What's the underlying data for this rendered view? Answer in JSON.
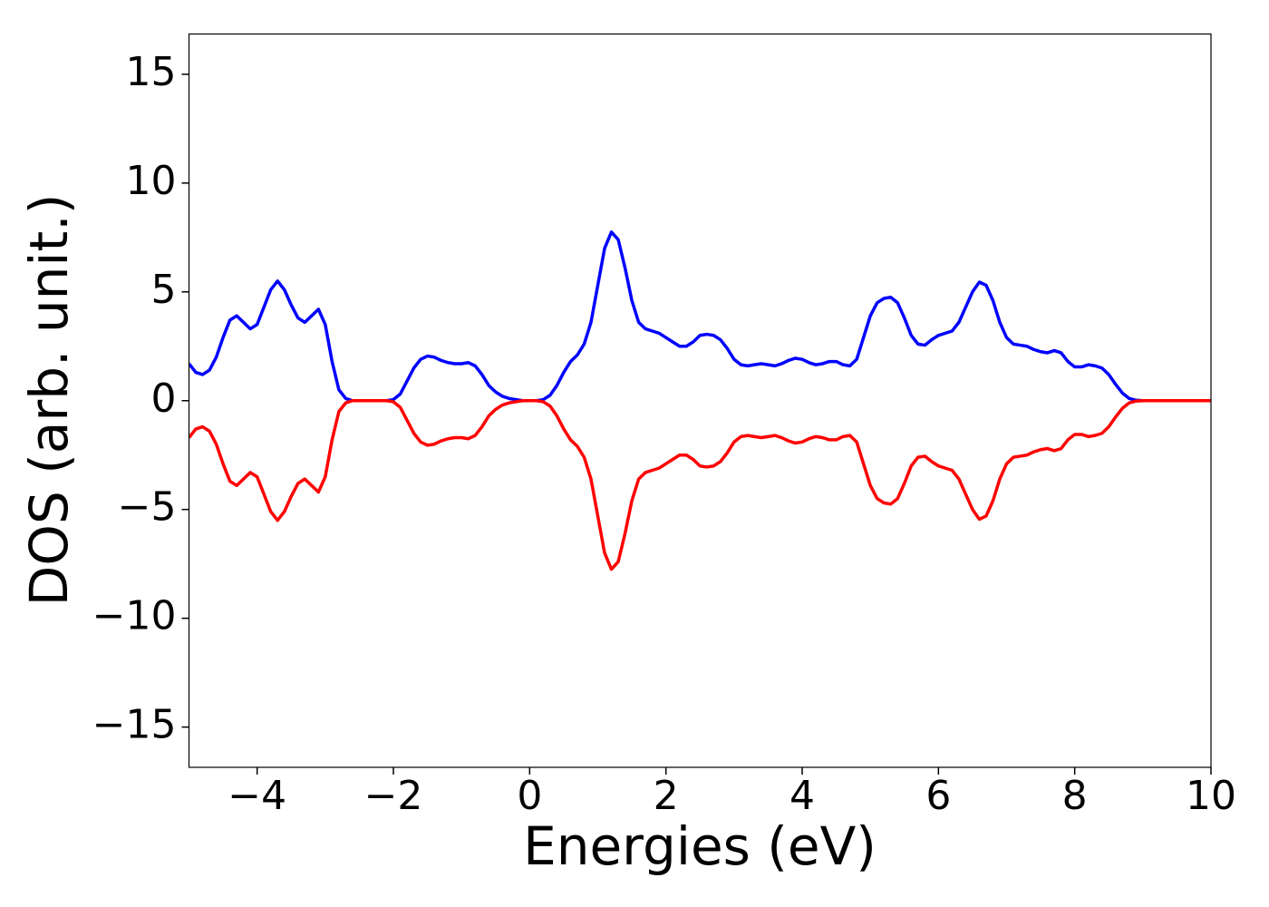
{
  "chart_data": {
    "type": "line",
    "xlabel": "Energies (eV)",
    "ylabel": "DOS (arb. unit.)",
    "xlim": [
      -5,
      10
    ],
    "ylim": [
      -16.85,
      16.85
    ],
    "xticks": [
      {
        "value": -4,
        "label": "−4"
      },
      {
        "value": -2,
        "label": "−2"
      },
      0,
      2,
      4,
      6,
      8,
      10
    ],
    "yticks": [
      {
        "value": -15,
        "label": "−15"
      },
      {
        "value": -10,
        "label": "−10"
      },
      {
        "value": -5,
        "label": "−5"
      },
      0,
      5,
      10,
      15
    ],
    "grid": false,
    "x": [
      -5.0,
      -4.9,
      -4.8,
      -4.7,
      -4.6,
      -4.5,
      -4.4,
      -4.3,
      -4.2,
      -4.1,
      -4.0,
      -3.9,
      -3.8,
      -3.7,
      -3.6,
      -3.5,
      -3.4,
      -3.3,
      -3.2,
      -3.1,
      -3.0,
      -2.9,
      -2.8,
      -2.7,
      -2.6,
      -2.5,
      -2.4,
      -2.3,
      -2.2,
      -2.1,
      -2.0,
      -1.9,
      -1.8,
      -1.7,
      -1.6,
      -1.5,
      -1.4,
      -1.3,
      -1.2,
      -1.1,
      -1.0,
      -0.9,
      -0.8,
      -0.7,
      -0.6,
      -0.5,
      -0.4,
      -0.3,
      -0.2,
      -0.1,
      0.0,
      0.1,
      0.2,
      0.3,
      0.4,
      0.5,
      0.6,
      0.7,
      0.8,
      0.9,
      1.0,
      1.1,
      1.2,
      1.3,
      1.4,
      1.5,
      1.6,
      1.7,
      1.8,
      1.9,
      2.0,
      2.1,
      2.2,
      2.3,
      2.4,
      2.5,
      2.6,
      2.7,
      2.8,
      2.9,
      3.0,
      3.1,
      3.2,
      3.3,
      3.4,
      3.5,
      3.6,
      3.7,
      3.8,
      3.9,
      4.0,
      4.1,
      4.2,
      4.3,
      4.4,
      4.5,
      4.6,
      4.7,
      4.8,
      4.9,
      5.0,
      5.1,
      5.2,
      5.3,
      5.4,
      5.5,
      5.6,
      5.7,
      5.8,
      5.9,
      6.0,
      6.1,
      6.2,
      6.3,
      6.4,
      6.5,
      6.6,
      6.7,
      6.8,
      6.9,
      7.0,
      7.1,
      7.2,
      7.3,
      7.4,
      7.5,
      7.6,
      7.7,
      7.8,
      7.9,
      8.0,
      8.1,
      8.2,
      8.3,
      8.4,
      8.5,
      8.6,
      8.7,
      8.8,
      8.9,
      9.0,
      9.1,
      9.2,
      9.3,
      9.4,
      9.5,
      9.6,
      9.7,
      9.8,
      9.9,
      10.0
    ],
    "series": [
      {
        "color": "#0000ff",
        "values": [
          1.7,
          1.3,
          1.2,
          1.4,
          2.0,
          2.9,
          3.7,
          3.9,
          3.6,
          3.3,
          3.5,
          4.3,
          5.1,
          5.5,
          5.1,
          4.4,
          3.8,
          3.6,
          3.9,
          4.2,
          3.5,
          1.8,
          0.5,
          0.1,
          0,
          0,
          0,
          0,
          0,
          0,
          0.05,
          0.3,
          0.9,
          1.5,
          1.9,
          2.05,
          2.0,
          1.85,
          1.75,
          1.7,
          1.7,
          1.75,
          1.6,
          1.2,
          0.7,
          0.4,
          0.2,
          0.1,
          0.05,
          0,
          0,
          0,
          0.05,
          0.25,
          0.7,
          1.3,
          1.8,
          2.1,
          2.6,
          3.6,
          5.3,
          7.0,
          7.75,
          7.4,
          6.1,
          4.6,
          3.6,
          3.3,
          3.2,
          3.1,
          2.9,
          2.7,
          2.5,
          2.5,
          2.7,
          3.0,
          3.05,
          3.0,
          2.8,
          2.4,
          1.9,
          1.65,
          1.6,
          1.65,
          1.7,
          1.65,
          1.6,
          1.7,
          1.85,
          1.95,
          1.9,
          1.75,
          1.65,
          1.7,
          1.8,
          1.8,
          1.65,
          1.6,
          1.9,
          2.9,
          3.9,
          4.5,
          4.7,
          4.75,
          4.5,
          3.8,
          3.0,
          2.6,
          2.55,
          2.8,
          3.0,
          3.1,
          3.2,
          3.6,
          4.3,
          5.0,
          5.45,
          5.3,
          4.6,
          3.6,
          2.9,
          2.6,
          2.55,
          2.5,
          2.35,
          2.25,
          2.2,
          2.3,
          2.2,
          1.8,
          1.55,
          1.55,
          1.65,
          1.6,
          1.5,
          1.2,
          0.75,
          0.35,
          0.1,
          0.02,
          0,
          0,
          0,
          0,
          0,
          0,
          0,
          0,
          0,
          0,
          0
        ]
      },
      {
        "color": "#ff0000",
        "values": [
          -1.7,
          -1.3,
          -1.2,
          -1.4,
          -2.0,
          -2.9,
          -3.7,
          -3.9,
          -3.6,
          -3.3,
          -3.5,
          -4.3,
          -5.1,
          -5.5,
          -5.1,
          -4.4,
          -3.8,
          -3.6,
          -3.9,
          -4.2,
          -3.5,
          -1.8,
          -0.5,
          -0.1,
          0,
          0,
          0,
          0,
          0,
          0,
          -0.05,
          -0.3,
          -0.9,
          -1.5,
          -1.9,
          -2.05,
          -2.0,
          -1.85,
          -1.75,
          -1.7,
          -1.7,
          -1.75,
          -1.6,
          -1.2,
          -0.7,
          -0.4,
          -0.2,
          -0.1,
          -0.05,
          0,
          0,
          0,
          -0.05,
          -0.25,
          -0.7,
          -1.3,
          -1.8,
          -2.1,
          -2.6,
          -3.6,
          -5.3,
          -7.0,
          -7.75,
          -7.4,
          -6.1,
          -4.6,
          -3.6,
          -3.3,
          -3.2,
          -3.1,
          -2.9,
          -2.7,
          -2.5,
          -2.5,
          -2.7,
          -3.0,
          -3.05,
          -3.0,
          -2.8,
          -2.4,
          -1.9,
          -1.65,
          -1.6,
          -1.65,
          -1.7,
          -1.65,
          -1.6,
          -1.7,
          -1.85,
          -1.95,
          -1.9,
          -1.75,
          -1.65,
          -1.7,
          -1.8,
          -1.8,
          -1.65,
          -1.6,
          -1.9,
          -2.9,
          -3.9,
          -4.5,
          -4.7,
          -4.75,
          -4.5,
          -3.8,
          -3.0,
          -2.6,
          -2.55,
          -2.8,
          -3.0,
          -3.1,
          -3.2,
          -3.6,
          -4.3,
          -5.0,
          -5.45,
          -5.3,
          -4.6,
          -3.6,
          -2.9,
          -2.6,
          -2.55,
          -2.5,
          -2.35,
          -2.25,
          -2.2,
          -2.3,
          -2.2,
          -1.8,
          -1.55,
          -1.55,
          -1.65,
          -1.6,
          -1.5,
          -1.2,
          -0.75,
          -0.35,
          -0.1,
          -0.02,
          0,
          0,
          0,
          0,
          0,
          0,
          0,
          0,
          0,
          0,
          0
        ]
      }
    ]
  }
}
